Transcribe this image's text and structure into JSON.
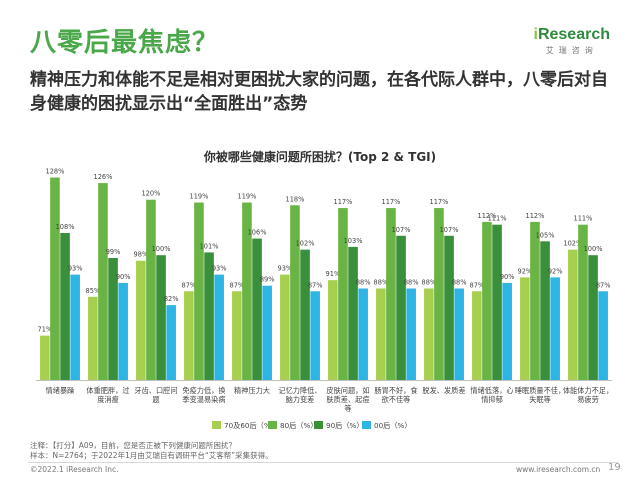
{
  "page": {
    "title": "八零后最焦虑？",
    "subtitle": "精神压力和体能不足是相对更困扰大家的问题，在各代际人群中，八零后对自身健康的困扰显示出“全面胜出”态势",
    "logo_text_i": "i",
    "logo_text_rest": "Research",
    "logo_sub": "艾瑞咨询",
    "note_line1": "注释：【打分】A09，目前，您是否正被下列健康问题所困扰？",
    "note_line2": "样本：N=2764；于2022年1月由艾瑞自有调研平台“艾客帮”采集获得。",
    "footer_left": "©2022.1 iResearch Inc.",
    "footer_right": "www.iresearch.com.cn",
    "page_number": "19"
  },
  "colors": {
    "title_green": "#4aa84a",
    "s70": "#a6cf4f",
    "s80": "#6ab446",
    "s90": "#3a8f3a",
    "s00": "#2fb5e4"
  },
  "chart_data": {
    "type": "bar",
    "title": "你被哪些健康问题所困扰？(Top 2 & TGI)",
    "categories": [
      "情绪暴躁",
      "体重肥胖，过度消瘦",
      "牙齿、口腔问题",
      "免疫力低，换季变温易染病",
      "精神压力大",
      "记忆力降低、脑力变差",
      "皮肤问题，如肤质差、起痘等",
      "肠胃不好，食欲不佳等",
      "脱发、发质差",
      "情绪低落，心情抑郁",
      "睡眠质量不佳，失眠等",
      "体能体力不足，易疲劳"
    ],
    "category_lines": [
      [
        "情绪暴躁"
      ],
      [
        "体重肥胖，过",
        "度消瘦"
      ],
      [
        "牙齿、口腔问",
        "题"
      ],
      [
        "免疫力低，换",
        "季变温易染病"
      ],
      [
        "精神压力大"
      ],
      [
        "记忆力降低、",
        "脑力变差"
      ],
      [
        "皮肤问题，如",
        "肤质差、起痘",
        "等"
      ],
      [
        "肠胃不好，食",
        "欲不佳等"
      ],
      [
        "脱发、发质差"
      ],
      [
        "情绪低落，心",
        "情抑郁"
      ],
      [
        "睡眠质量不佳，",
        "失眠等"
      ],
      [
        "体能体力不足，",
        "易疲劳"
      ]
    ],
    "series": [
      {
        "name": "70及60后（%）",
        "color_key": "s70",
        "values": [
          71,
          85,
          98,
          87,
          87,
          93,
          91,
          88,
          88,
          87,
          92,
          102
        ]
      },
      {
        "name": "80后（%）",
        "color_key": "s80",
        "values": [
          128,
          126,
          120,
          119,
          119,
          118,
          117,
          117,
          117,
          112,
          112,
          111
        ]
      },
      {
        "name": "90后（%）",
        "color_key": "s90",
        "values": [
          108,
          99,
          100,
          101,
          106,
          102,
          103,
          107,
          107,
          111,
          105,
          100
        ]
      },
      {
        "name": "00后（%）",
        "color_key": "s00",
        "values": [
          93,
          90,
          82,
          93,
          89,
          87,
          88,
          88,
          88,
          90,
          92,
          87
        ]
      }
    ],
    "labels": [
      [
        "71%",
        "85%",
        "98%",
        "87%",
        "87%",
        "93%",
        "91%",
        "88%",
        "88%",
        "87%",
        "92%",
        "102%"
      ],
      [
        "128%",
        "126%",
        "120%",
        "119%",
        "119%",
        "118%",
        "117%",
        "117%",
        "117%",
        "112%",
        "112%",
        "111%"
      ],
      [
        "108%",
        "99%",
        "100%",
        "101%",
        "106%",
        "102%",
        "103%",
        "107%",
        "107%",
        "111%",
        "105%",
        "100%"
      ],
      [
        "93%",
        "90%",
        "82%",
        "93%",
        "89%",
        "87%",
        "88%",
        "88%",
        "88%",
        "90%",
        "92%",
        "87%"
      ]
    ],
    "ylim": [
      55,
      130
    ],
    "xlabel": "",
    "ylabel": "",
    "grid": false,
    "legend_position": "bottom"
  }
}
